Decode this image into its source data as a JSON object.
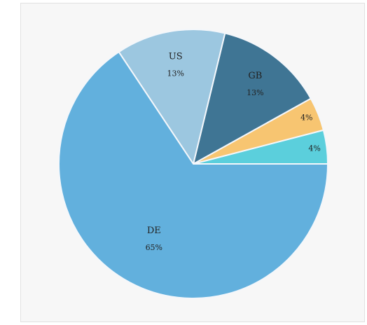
{
  "chart_data": {
    "type": "pie",
    "slices": [
      {
        "name": "DE",
        "value": 65,
        "label": "65%",
        "color": "#62b0dd",
        "show_name": true
      },
      {
        "name": "US",
        "value": 13,
        "label": "13%",
        "color": "#9cc7e0",
        "show_name": true
      },
      {
        "name": "GB",
        "value": 13,
        "label": "13%",
        "color": "#3f7594",
        "show_name": true
      },
      {
        "name": "",
        "value": 4,
        "label": "4%",
        "color": "#f7c571",
        "show_name": false
      },
      {
        "name": "",
        "value": 4,
        "label": "4%",
        "color": "#5bcfdc",
        "show_name": false
      }
    ]
  }
}
